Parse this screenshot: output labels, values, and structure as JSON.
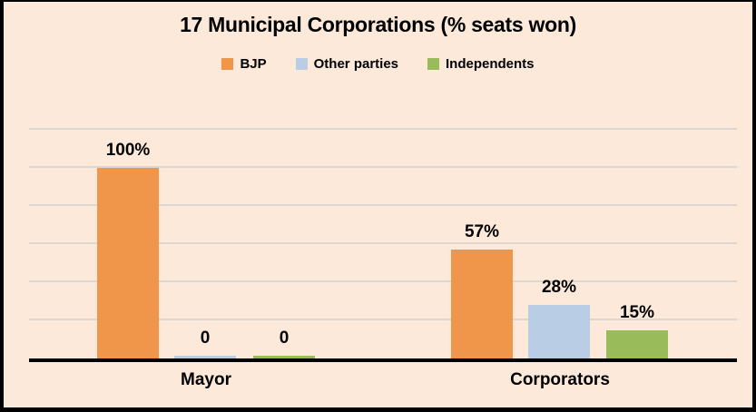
{
  "chart_data": {
    "type": "bar",
    "title": "17 Municipal Corporations (% seats won)",
    "categories": [
      "Mayor",
      "Corporators"
    ],
    "series": [
      {
        "name": "BJP",
        "color": "#F0964B",
        "values": [
          100,
          57
        ],
        "labels": [
          "100%",
          "57%"
        ]
      },
      {
        "name": "Other parties",
        "color": "#B9CDE4",
        "values": [
          0,
          28
        ],
        "labels": [
          "0",
          "28%"
        ]
      },
      {
        "name": "Independents",
        "color": "#9ABB59",
        "values": [
          0,
          15
        ],
        "labels": [
          "0",
          "15%"
        ]
      }
    ],
    "xlabel": "",
    "ylabel": "",
    "ylim": [
      0,
      120
    ],
    "gridline_step": 20,
    "grid": true,
    "legend_position": "top",
    "value_labels_shown": true,
    "y_tick_labels_shown": false
  },
  "colors": {
    "background": "#FDE9D9",
    "frame": "#000000",
    "gridline": "#DCD5D0",
    "axis": "#000000",
    "text": "#000000"
  }
}
